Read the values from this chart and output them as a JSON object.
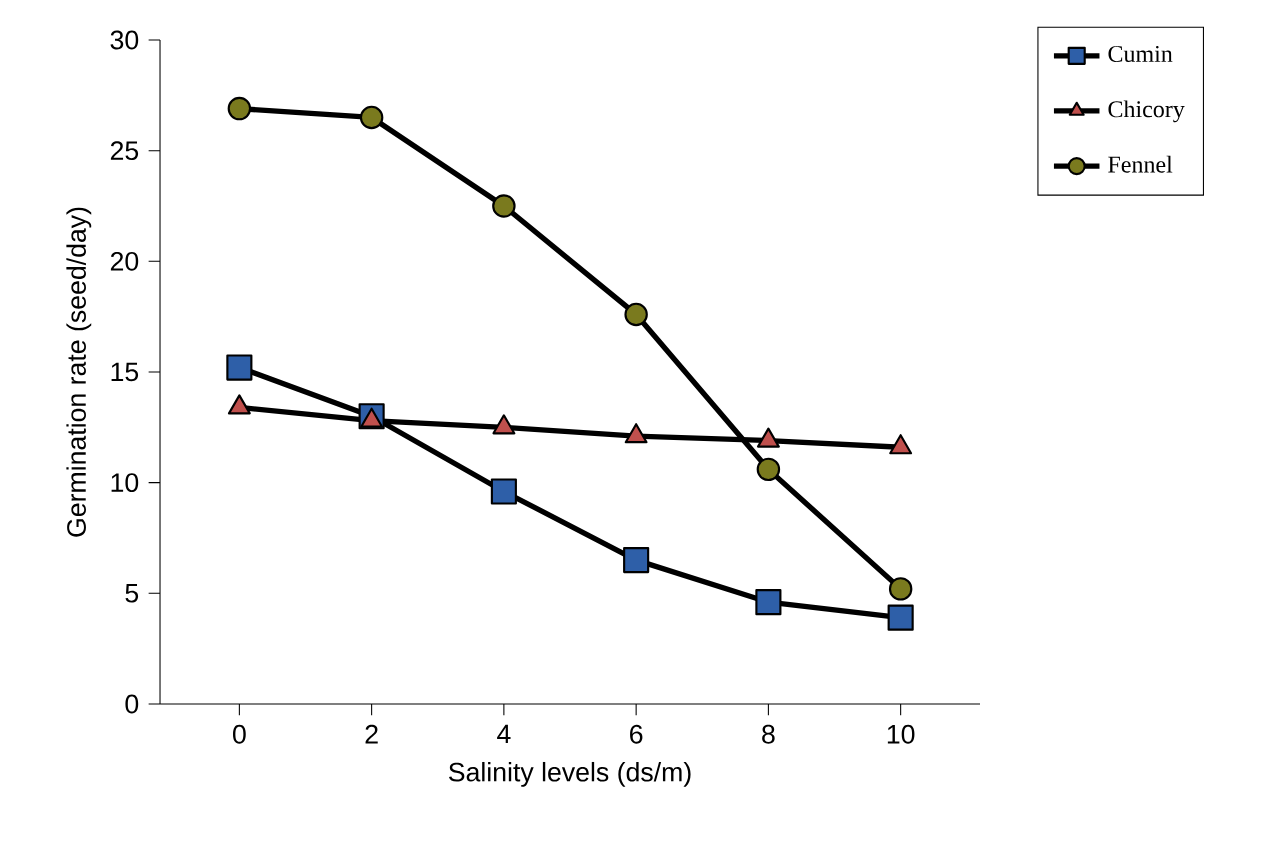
{
  "chart_data": {
    "type": "line",
    "xlabel": "Salinity levels (ds/m)",
    "ylabel": "Germination rate (seed/day)",
    "x": [
      0,
      2,
      4,
      6,
      8,
      10
    ],
    "xlim": [
      -1.2,
      11.2
    ],
    "xticks": [
      0,
      2,
      4,
      6,
      8,
      10
    ],
    "ylim": [
      0,
      30
    ],
    "yticks": [
      0,
      5,
      10,
      15,
      20,
      25,
      30
    ],
    "grid": false,
    "legend": "top right",
    "series": [
      {
        "name": "Cumin",
        "color": "#2e5fa8",
        "marker": "square",
        "values": [
          15.2,
          13.0,
          9.6,
          6.5,
          4.6,
          3.9
        ]
      },
      {
        "name": "Chicory",
        "color": "#c0504d",
        "marker": "triangle",
        "values": [
          13.4,
          12.8,
          12.5,
          12.1,
          11.9,
          11.6
        ]
      },
      {
        "name": "Fennel",
        "color": "#7a7a1e",
        "marker": "circle",
        "values": [
          26.9,
          26.5,
          22.5,
          17.6,
          10.6,
          5.2
        ]
      }
    ]
  }
}
